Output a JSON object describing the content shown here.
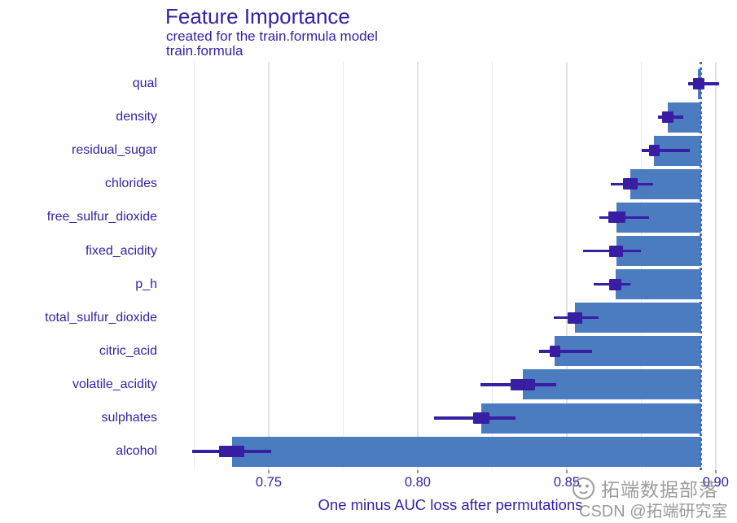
{
  "chart_data": {
    "type": "bar",
    "orientation": "horizontal",
    "title": "Feature Importance",
    "subtitle_line1": "created for the train.formula model",
    "subtitle_line2": "train.formula",
    "xlabel": "One minus AUC loss after permutations",
    "xlim": [
      0.7164,
      0.9055
    ],
    "x_ticks": [
      0.75,
      0.8,
      0.85,
      0.9
    ],
    "x_tick_labels": [
      "0.75",
      "0.80",
      "0.85",
      "0.90"
    ],
    "x_minor_gridlines": [
      0.725,
      0.775,
      0.825,
      0.875
    ],
    "baseline_full_model": 0.8951,
    "grid": true,
    "features": [
      {
        "label": "qual",
        "mean": 0.894,
        "box": [
          0.8923,
          0.8962
        ],
        "whisker": [
          0.8907,
          0.9012
        ]
      },
      {
        "label": "density",
        "mean": 0.884,
        "box": [
          0.882,
          0.8857
        ],
        "whisker": [
          0.8807,
          0.889
        ]
      },
      {
        "label": "residual_sugar",
        "mean": 0.8793,
        "box": [
          0.8775,
          0.8813
        ],
        "whisker": [
          0.8752,
          0.8912
        ]
      },
      {
        "label": "chlorides",
        "mean": 0.8713,
        "box": [
          0.8688,
          0.8738
        ],
        "whisker": [
          0.8649,
          0.8789
        ]
      },
      {
        "label": "free_sulfur_dioxide",
        "mean": 0.8668,
        "box": [
          0.8639,
          0.8698
        ],
        "whisker": [
          0.8609,
          0.8775
        ]
      },
      {
        "label": "fixed_acidity",
        "mean": 0.8666,
        "box": [
          0.8643,
          0.8689
        ],
        "whisker": [
          0.8554,
          0.8748
        ]
      },
      {
        "label": "p_h",
        "mean": 0.8664,
        "box": [
          0.8643,
          0.8684
        ],
        "whisker": [
          0.859,
          0.8713
        ]
      },
      {
        "label": "total_sulfur_dioxide",
        "mean": 0.8527,
        "box": [
          0.8502,
          0.8552
        ],
        "whisker": [
          0.8456,
          0.8607
        ]
      },
      {
        "label": "citric_acid",
        "mean": 0.8459,
        "box": [
          0.8443,
          0.8478
        ],
        "whisker": [
          0.8406,
          0.8584
        ]
      },
      {
        "label": "volatile_acidity",
        "mean": 0.8352,
        "box": [
          0.8311,
          0.8393
        ],
        "whisker": [
          0.821,
          0.8465
        ]
      },
      {
        "label": "sulphates",
        "mean": 0.8213,
        "box": [
          0.8186,
          0.8242
        ],
        "whisker": [
          0.8056,
          0.8329
        ]
      },
      {
        "label": "alcohol",
        "mean": 0.7376,
        "box": [
          0.7334,
          0.7418
        ],
        "whisker": [
          0.7243,
          0.7507
        ]
      }
    ]
  },
  "colors": {
    "text_indigo": "#371ea3",
    "bar_blue": "#4a7cbf",
    "box_indigo": "#371ea3",
    "baseline_blue": "#4b66c8",
    "gridline": "#e2e2e2",
    "watermark_gray": "#808080"
  },
  "watermark": {
    "line1": "拓端数据部落",
    "line2": "CSDN @拓端研究室"
  }
}
